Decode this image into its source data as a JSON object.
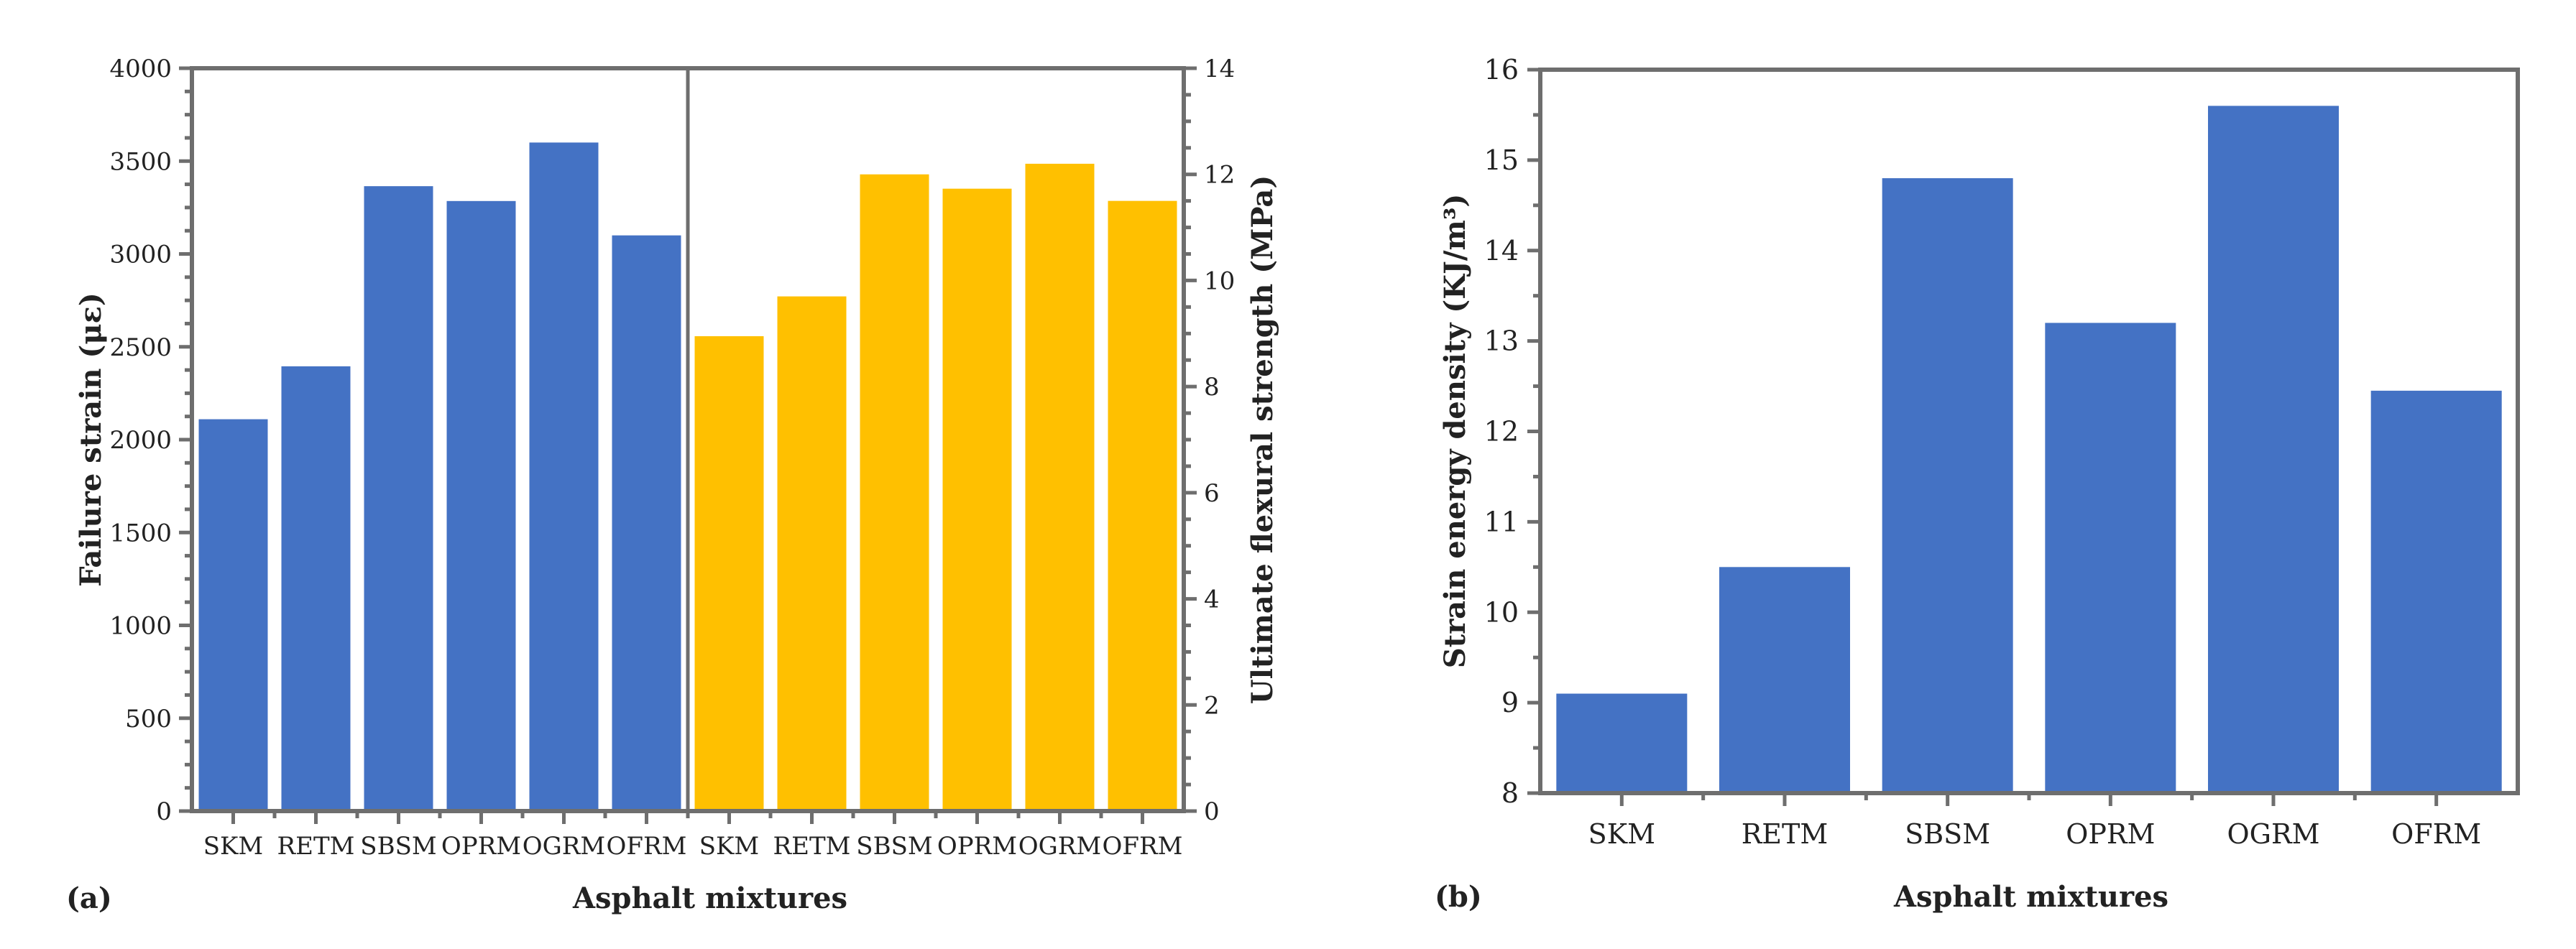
{
  "panels": {
    "a_label": "(a)",
    "b_label": "(b)"
  },
  "chart_data": [
    {
      "type": "bar",
      "panel": "(a)",
      "categories": [
        "SKM",
        "RETM",
        "SBSM",
        "OPRM",
        "OGRM",
        "OFRM"
      ],
      "xlabel": "Asphalt mixtures",
      "ylabel_left": "Failure strain (με)",
      "ylabel_right": "Ultimate flexural strength (MPa)",
      "ylim_left": [
        0,
        4000
      ],
      "ylim_right": [
        0,
        14
      ],
      "yticks_left": [
        0,
        500,
        1000,
        1500,
        2000,
        2500,
        3000,
        3500,
        4000
      ],
      "yticks_right": [
        0,
        2,
        4,
        6,
        8,
        10,
        12,
        14
      ],
      "series": [
        {
          "axis": "left",
          "color": "#4472C4",
          "values": [
            2110,
            2395,
            3365,
            3285,
            3600,
            3100
          ]
        },
        {
          "axis": "right",
          "color": "#FFC000",
          "values": [
            8.95,
            9.7,
            12.0,
            11.73,
            12.2,
            11.5
          ]
        }
      ],
      "grid": false
    },
    {
      "type": "bar",
      "panel": "(b)",
      "categories": [
        "SKM",
        "RETM",
        "SBSM",
        "OPRM",
        "OGRM",
        "OFRM"
      ],
      "xlabel": "Asphalt mixtures",
      "ylabel": "Strain energy density (KJ/m³)",
      "ylim": [
        8,
        16
      ],
      "yticks": [
        8,
        9,
        10,
        11,
        12,
        13,
        14,
        15,
        16
      ],
      "series": [
        {
          "color": "#4472C4",
          "values": [
            9.1,
            10.5,
            14.8,
            13.2,
            15.6,
            12.45
          ]
        }
      ],
      "grid": false
    }
  ]
}
